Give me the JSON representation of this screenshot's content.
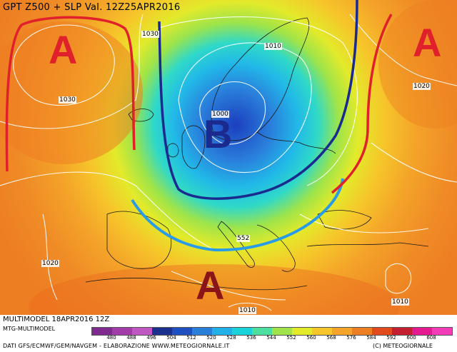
{
  "title": "GPT Z500 + SLP Val. 12Z25APR2016",
  "pressure_labels": {
    "highs": [
      "A",
      "A",
      "A"
    ],
    "low": "B"
  },
  "isobar_labels": [
    "1030",
    "1030",
    "1010",
    "1020",
    "1000",
    "1020",
    "552",
    "1010",
    "1010"
  ],
  "footer": {
    "model_run": "MULTIMODEL 18APR2016 12Z",
    "model_name": "MTG-MULTIMODEL",
    "sources": "DATI GFS/ECMWF/GEM/NAVGEM - ELABORAZIONE WWW.METEOGIORNALE.IT",
    "copyright": "(C) METEOGIORNALE"
  },
  "legend": {
    "values": [
      "480",
      "488",
      "496",
      "504",
      "512",
      "520",
      "528",
      "536",
      "544",
      "552",
      "560",
      "568",
      "576",
      "584",
      "592",
      "600",
      "608"
    ],
    "colors": [
      "#7e2a8e",
      "#a13ca8",
      "#c057c2",
      "#1b2f8e",
      "#1f50c2",
      "#2a7fdb",
      "#21b0e8",
      "#19d3d9",
      "#4ddfa0",
      "#9ee44a",
      "#e3ea2a",
      "#f6c62a",
      "#f4a429",
      "#ee7e22",
      "#e04a1c",
      "#c41f2e",
      "#e41a90",
      "#f33db8"
    ]
  }
}
